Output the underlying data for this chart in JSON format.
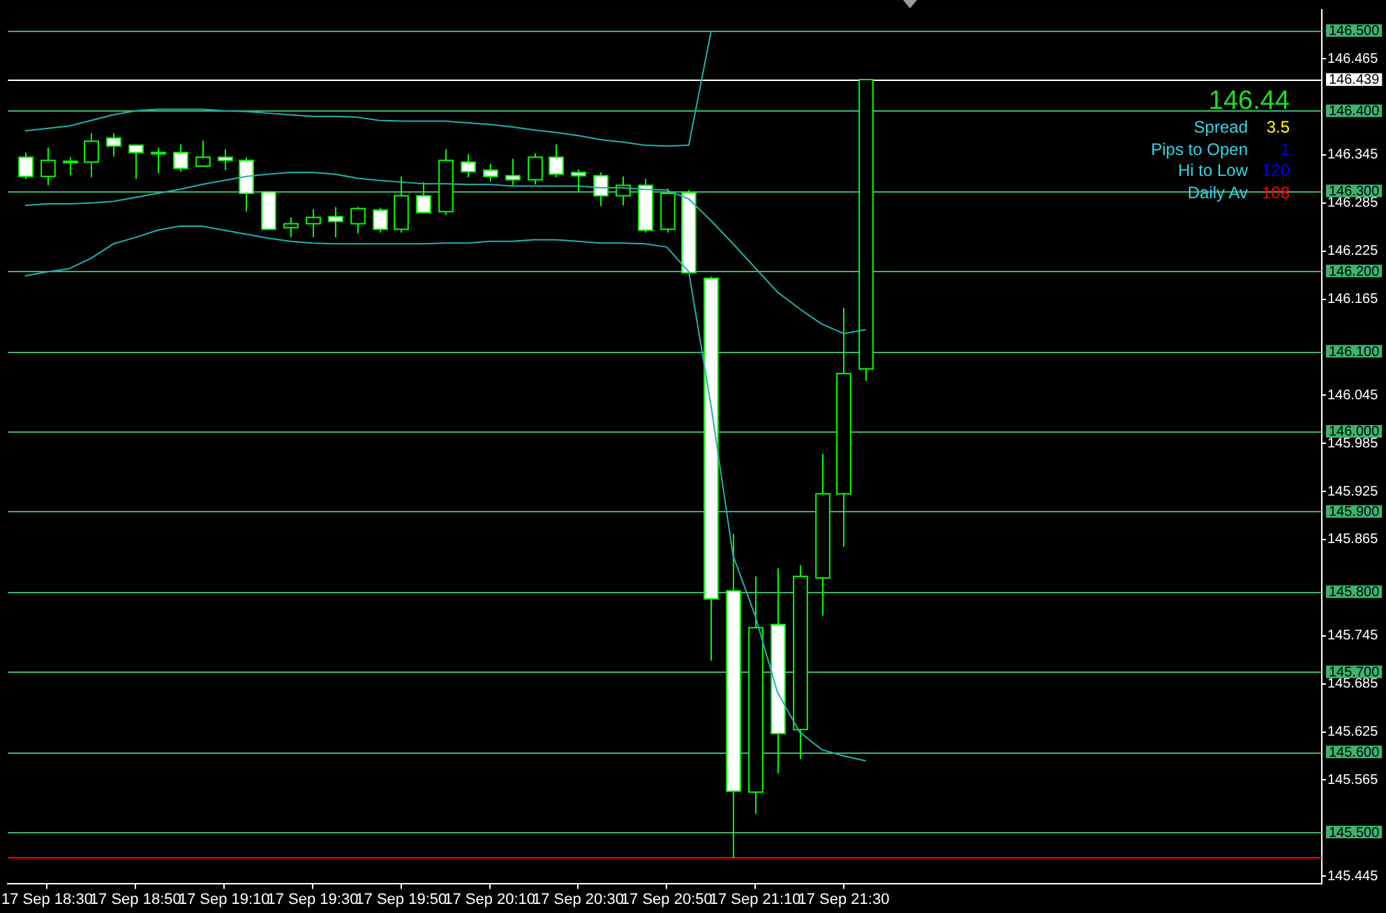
{
  "chart_data": {
    "type": "candlestick",
    "categories": [
      null,
      "17 Sep 18:30",
      null,
      null,
      null,
      "17 Sep 18:50",
      null,
      null,
      null,
      "17 Sep 19:10",
      null,
      null,
      null,
      "17 Sep 19:30",
      null,
      null,
      null,
      "17 Sep 19:50",
      null,
      null,
      null,
      "17 Sep 20:10",
      null,
      null,
      null,
      "17 Sep 20:30",
      null,
      null,
      null,
      "17 Sep 20:50",
      null,
      null,
      null,
      "17 Sep 21:10",
      null,
      null,
      null,
      "17 Sep 21:30",
      null
    ],
    "ohlc": [
      [
        146.342,
        146.348,
        146.315,
        146.318
      ],
      [
        146.318,
        146.354,
        146.307,
        146.338
      ],
      [
        146.336,
        146.342,
        146.32,
        146.337
      ],
      [
        146.336,
        146.372,
        146.317,
        146.362
      ],
      [
        146.366,
        146.372,
        146.343,
        146.356
      ],
      [
        146.357,
        146.358,
        146.315,
        146.348
      ],
      [
        146.348,
        146.354,
        146.322,
        146.348
      ],
      [
        146.348,
        146.358,
        146.324,
        146.328
      ],
      [
        146.331,
        146.363,
        146.331,
        146.342
      ],
      [
        146.342,
        146.352,
        146.326,
        146.338
      ],
      [
        146.338,
        146.342,
        146.274,
        146.297
      ],
      [
        146.299,
        146.299,
        146.252,
        146.252
      ],
      [
        146.254,
        146.267,
        146.242,
        146.259
      ],
      [
        146.259,
        146.277,
        146.242,
        146.267
      ],
      [
        146.268,
        146.28,
        146.242,
        146.262
      ],
      [
        146.259,
        146.28,
        146.247,
        146.278
      ],
      [
        146.276,
        146.279,
        146.248,
        146.252
      ],
      [
        146.252,
        146.318,
        146.248,
        146.294
      ],
      [
        146.294,
        146.311,
        146.273,
        146.273
      ],
      [
        146.274,
        146.352,
        146.27,
        146.338
      ],
      [
        146.336,
        146.346,
        146.317,
        146.324
      ],
      [
        146.326,
        146.334,
        146.312,
        146.318
      ],
      [
        146.319,
        146.34,
        146.307,
        146.314
      ],
      [
        146.314,
        146.347,
        146.308,
        146.342
      ],
      [
        146.342,
        146.358,
        146.317,
        146.321
      ],
      [
        146.323,
        146.327,
        146.299,
        146.319
      ],
      [
        146.319,
        146.323,
        146.281,
        146.294
      ],
      [
        146.294,
        146.318,
        146.282,
        146.307
      ],
      [
        146.307,
        146.315,
        146.248,
        146.251
      ],
      [
        146.252,
        146.303,
        146.248,
        146.297
      ],
      [
        146.298,
        146.301,
        146.198,
        146.198
      ],
      [
        146.191,
        146.193,
        145.714,
        145.791
      ],
      [
        145.801,
        145.872,
        145.468,
        145.551
      ],
      [
        145.55,
        145.819,
        145.523,
        145.755
      ],
      [
        145.759,
        145.829,
        145.573,
        145.623
      ],
      [
        145.628,
        145.833,
        145.591,
        145.819
      ],
      [
        145.817,
        145.972,
        145.77,
        145.922
      ],
      [
        145.922,
        146.154,
        145.856,
        146.072
      ],
      [
        146.078,
        146.439,
        146.063,
        146.439
      ]
    ],
    "series": [
      {
        "type": "line",
        "color": "#20b2aa",
        "values": [
          146.375,
          146.378,
          146.381,
          146.388,
          146.395,
          146.4,
          146.402,
          146.402,
          146.402,
          146.4,
          146.399,
          146.397,
          146.395,
          146.393,
          146.393,
          146.392,
          146.388,
          146.387,
          146.387,
          146.387,
          146.385,
          146.383,
          146.38,
          146.376,
          146.373,
          146.369,
          146.364,
          146.361,
          146.357,
          146.356,
          146.357,
          146.498,
          null,
          null,
          null,
          null,
          null,
          null,
          null
        ]
      },
      {
        "type": "line",
        "color": "#20b2aa",
        "values": [
          146.282,
          146.284,
          146.284,
          146.285,
          146.287,
          146.292,
          146.297,
          146.302,
          146.308,
          146.313,
          146.318,
          146.321,
          146.323,
          146.323,
          146.321,
          146.316,
          146.313,
          146.311,
          146.309,
          146.309,
          146.308,
          146.308,
          146.306,
          146.306,
          146.306,
          146.306,
          146.304,
          146.304,
          146.302,
          146.301,
          146.29,
          146.263,
          146.234,
          146.204,
          146.174,
          146.153,
          146.134,
          146.122,
          146.127
        ]
      },
      {
        "type": "line",
        "color": "#20b2aa",
        "values": [
          146.194,
          146.199,
          146.203,
          146.216,
          146.234,
          146.242,
          146.251,
          146.256,
          146.256,
          146.251,
          146.246,
          146.241,
          146.237,
          146.235,
          146.234,
          146.234,
          146.234,
          146.234,
          146.234,
          146.235,
          146.235,
          146.237,
          146.237,
          146.239,
          146.239,
          146.237,
          146.235,
          146.235,
          146.234,
          146.23,
          146.199,
          146.033,
          145.845,
          145.77,
          145.675,
          145.625,
          145.603,
          145.595,
          145.589
        ]
      }
    ],
    "ylim": [
      145.436,
      146.526
    ],
    "yticks": [
      146.465,
      146.345,
      146.285,
      146.225,
      146.165,
      146.045,
      145.985,
      145.925,
      145.865,
      145.745,
      145.685,
      145.625,
      145.565,
      145.445
    ],
    "ref_lines": [
      {
        "axis": "y",
        "value": 146.5,
        "label": "146.500",
        "color": "#3cb371"
      },
      {
        "axis": "y",
        "value": 146.4,
        "label": "146.400",
        "color": "#3cb371"
      },
      {
        "axis": "y",
        "value": 146.3,
        "label": "146.300",
        "color": "#3cb371"
      },
      {
        "axis": "y",
        "value": 146.2,
        "label": "146.200",
        "color": "#3cb371"
      },
      {
        "axis": "y",
        "value": 146.1,
        "label": "146.100",
        "color": "#3cb371"
      },
      {
        "axis": "y",
        "value": 146.0,
        "label": "146.000",
        "color": "#3cb371"
      },
      {
        "axis": "y",
        "value": 145.9,
        "label": "145.900",
        "color": "#3cb371"
      },
      {
        "axis": "y",
        "value": 145.8,
        "label": "145.800",
        "color": "#3cb371"
      },
      {
        "axis": "y",
        "value": 145.7,
        "label": "145.700",
        "color": "#3cb371"
      },
      {
        "axis": "y",
        "value": 145.6,
        "label": "145.600",
        "color": "#3cb371"
      },
      {
        "axis": "y",
        "value": 145.5,
        "label": "145.500",
        "color": "#3cb371"
      },
      {
        "axis": "y",
        "value": 146.439,
        "label": "146.439",
        "color": "#ffffff"
      },
      {
        "axis": "y",
        "value": 145.468,
        "color": "#ff0000"
      }
    ],
    "annotations": [
      "146.44",
      "Spread",
      "3.5",
      "Pips to Open",
      "1",
      "Hi to Low",
      "120",
      "Daily Av",
      "108"
    ],
    "marker": "none",
    "grid": false,
    "legend": false
  }
}
